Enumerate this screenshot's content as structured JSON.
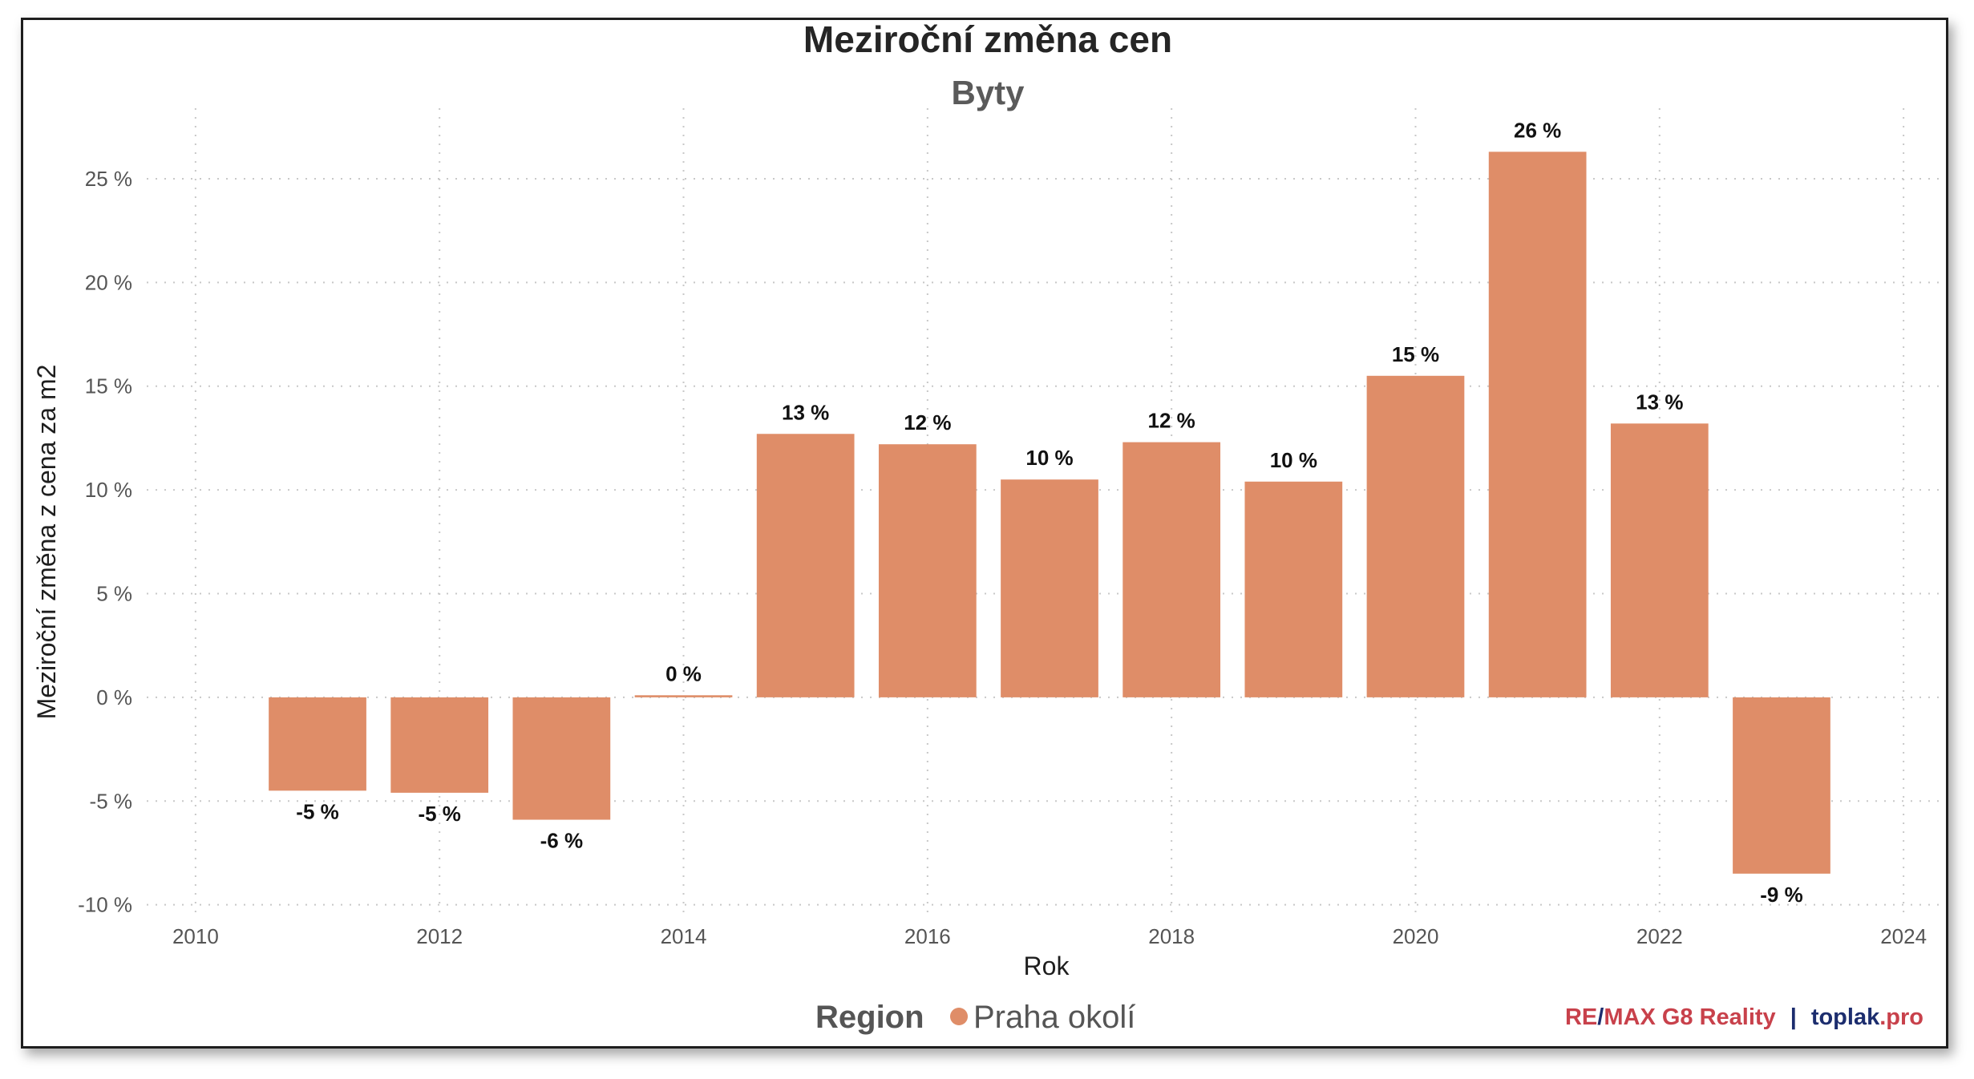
{
  "colors": {
    "bar": "#df8d68",
    "grid": "#c8c8c8",
    "credit_remax": "#c8414b",
    "credit_toplak": "#1c2d6e",
    "credit_pro": "#c8414b"
  },
  "credit": {
    "re": "RE",
    "slash": "/",
    "max": "MAX G8 Reality",
    "separator": "|",
    "toplak": "toplak",
    "pro": ".pro"
  },
  "chart_data": {
    "type": "bar",
    "title": "Meziroční změna cen",
    "subtitle": "Byty",
    "xlabel": "Rok",
    "ylabel": "Meziroční změna z cena za m2",
    "xlim": [
      2009.6,
      2024.4
    ],
    "ylim": [
      -10.4,
      28.4
    ],
    "grid": true,
    "legend": {
      "title": "Region",
      "position": "bottom",
      "entries": [
        "Praha okolí"
      ]
    },
    "x_ticks": [
      2010,
      2012,
      2014,
      2016,
      2018,
      2020,
      2022,
      2024
    ],
    "y_ticks": [
      -10,
      -5,
      0,
      5,
      10,
      15,
      20,
      25
    ],
    "y_tick_labels": [
      "-10 %",
      "-5 %",
      "0 %",
      "5 %",
      "10 %",
      "15 %",
      "20 %",
      "25 %"
    ],
    "series": [
      {
        "name": "Praha okolí",
        "x": [
          2011,
          2012,
          2013,
          2014,
          2015,
          2016,
          2017,
          2018,
          2019,
          2020,
          2021,
          2022,
          2023
        ],
        "values": [
          -4.5,
          -4.6,
          -5.9,
          0.1,
          12.7,
          12.2,
          10.5,
          12.3,
          10.4,
          15.5,
          26.3,
          13.2,
          -8.5
        ],
        "labels": [
          "-5 %",
          "-5 %",
          "-6 %",
          "0 %",
          "13 %",
          "12 %",
          "10 %",
          "12 %",
          "10 %",
          "15 %",
          "26 %",
          "13 %",
          "-9 %"
        ]
      }
    ]
  }
}
